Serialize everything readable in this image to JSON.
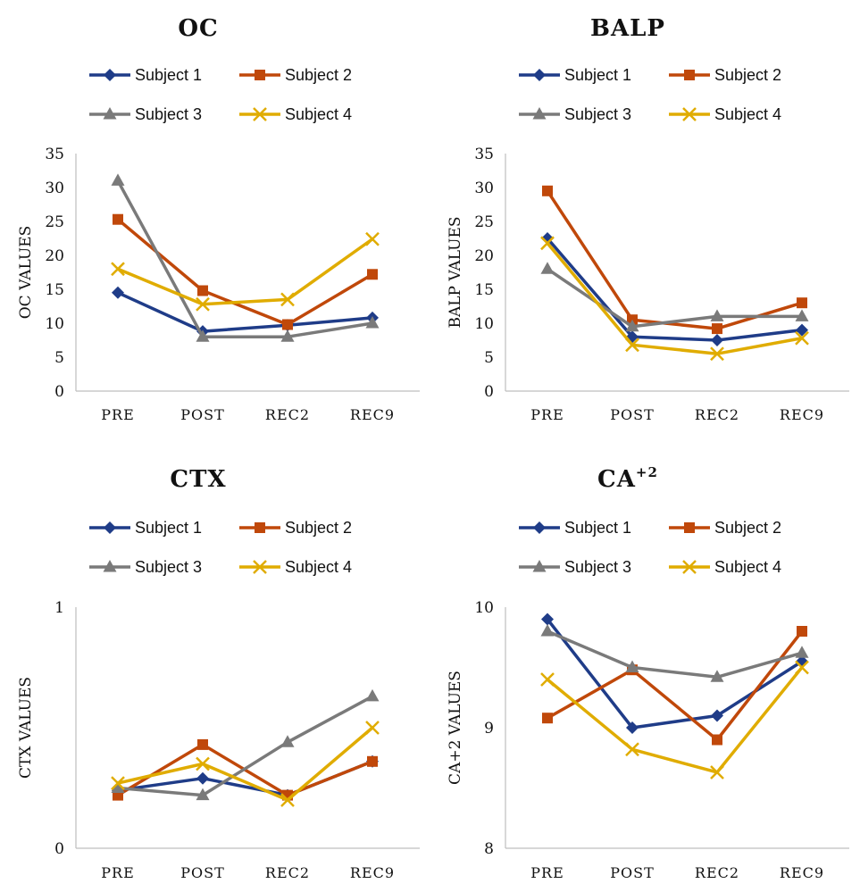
{
  "chart_data": [
    {
      "type": "line",
      "title": "OC",
      "ylabel": "OC VALUES",
      "categories": [
        "PRE",
        "POST",
        "REC2",
        "REC9"
      ],
      "ylim": [
        0,
        35
      ],
      "yticks": [
        "0",
        "5",
        "10",
        "15",
        "20",
        "25",
        "30",
        "35"
      ],
      "series": [
        {
          "name": "Subject 1",
          "values": [
            14.5,
            8.8,
            9.7,
            10.8
          ]
        },
        {
          "name": "Subject 2",
          "values": [
            25.3,
            14.8,
            9.8,
            17.2
          ]
        },
        {
          "name": "Subject 3",
          "values": [
            31.0,
            8.0,
            8.0,
            10.0
          ]
        },
        {
          "name": "Subject 4",
          "values": [
            18.0,
            12.8,
            13.5,
            22.4
          ]
        }
      ]
    },
    {
      "type": "line",
      "title": "BALP",
      "ylabel": "BALP VALUES",
      "categories": [
        "PRE",
        "POST",
        "REC2",
        "REC9"
      ],
      "ylim": [
        0,
        35
      ],
      "yticks": [
        "0",
        "5",
        "10",
        "15",
        "20",
        "25",
        "30",
        "35"
      ],
      "series": [
        {
          "name": "Subject 1",
          "values": [
            22.5,
            8.0,
            7.5,
            9.0
          ]
        },
        {
          "name": "Subject 2",
          "values": [
            29.5,
            10.5,
            9.2,
            13.0
          ]
        },
        {
          "name": "Subject 3",
          "values": [
            18.0,
            9.5,
            11.0,
            11.0
          ]
        },
        {
          "name": "Subject 4",
          "values": [
            21.8,
            6.8,
            5.5,
            7.8
          ]
        }
      ]
    },
    {
      "type": "line",
      "title": "CTX",
      "ylabel": "CTX VALUES",
      "categories": [
        "PRE",
        "POST",
        "REC2",
        "REC9"
      ],
      "ylim": [
        0,
        1
      ],
      "yticks": [
        "0",
        "1"
      ],
      "series": [
        {
          "name": "Subject 1",
          "values": [
            0.24,
            0.29,
            0.22,
            0.36
          ]
        },
        {
          "name": "Subject 2",
          "values": [
            0.22,
            0.43,
            0.22,
            0.36
          ]
        },
        {
          "name": "Subject 3",
          "values": [
            0.25,
            0.22,
            0.44,
            0.63
          ]
        },
        {
          "name": "Subject 4",
          "values": [
            0.27,
            0.35,
            0.2,
            0.5
          ]
        }
      ]
    },
    {
      "type": "line",
      "title": "CA",
      "title_sup": "+2",
      "ylabel": "CA+2 VALUES",
      "categories": [
        "PRE",
        "POST",
        "REC2",
        "REC9"
      ],
      "ylim": [
        8,
        10
      ],
      "yticks": [
        "8",
        "9",
        "10"
      ],
      "series": [
        {
          "name": "Subject 1",
          "values": [
            9.9,
            9.0,
            9.1,
            9.55
          ]
        },
        {
          "name": "Subject 2",
          "values": [
            9.08,
            9.48,
            8.9,
            9.8
          ]
        },
        {
          "name": "Subject 3",
          "values": [
            9.8,
            9.5,
            9.42,
            9.62
          ]
        },
        {
          "name": "Subject 4",
          "values": [
            9.4,
            8.82,
            8.63,
            9.5
          ]
        }
      ]
    }
  ],
  "style": {
    "colors": [
      "#1f3c88",
      "#c0480a",
      "#7a7a7a",
      "#e0ac00"
    ],
    "markers": [
      "diamond",
      "square",
      "triangle",
      "x"
    ],
    "axis_color": "#bfbfbf"
  }
}
